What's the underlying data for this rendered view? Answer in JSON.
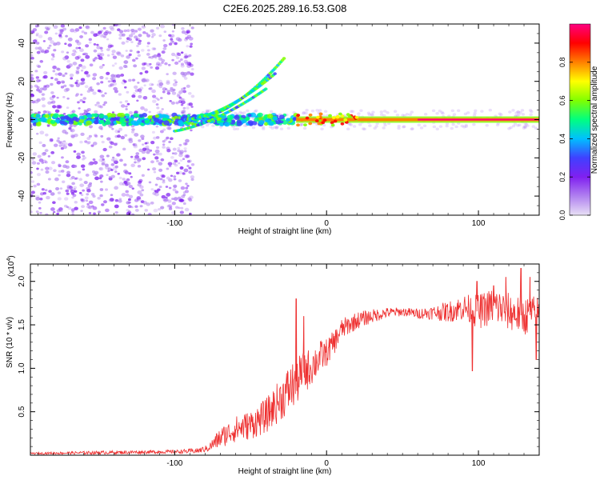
{
  "page_title": "C2E6.2025.289.16.53.G08",
  "chart_data": [
    {
      "type": "heatmap",
      "name": "spectrogram",
      "xlabel": "Height of straight line (km)",
      "ylabel": "Frequency (Hz)",
      "xlim": [
        -195,
        140
      ],
      "ylim": [
        -50,
        50
      ],
      "xticks": [
        -100,
        0,
        100
      ],
      "xtick_labels": [
        "-100",
        "0",
        "100"
      ],
      "yticks": [
        -40,
        -20,
        0,
        20,
        40
      ],
      "ytick_labels": [
        "-40",
        "-20",
        "0",
        "20",
        "40"
      ],
      "colorbar": {
        "label": "Normalized spectral amplitude",
        "range": [
          0,
          1
        ],
        "ticks": [
          0,
          0.2,
          0.4,
          0.6,
          0.8
        ],
        "tick_labels": [
          "0.0",
          "0.2",
          "0.4",
          "0.6",
          "0.8"
        ],
        "colors": [
          "#e8e0f5",
          "#b080f0",
          "#8020f0",
          "#4040ff",
          "#00c0ff",
          "#00ff80",
          "#80ff00",
          "#ffff00",
          "#ff8000",
          "#ff0000",
          "#ff0080"
        ]
      },
      "features": {
        "noise_region_x": [
          -195,
          -88
        ],
        "noise_frequency_spread": [
          -50,
          50
        ],
        "carrier_frequency": 0,
        "chirp_start_x": -88,
        "chirp_end_x": -28,
        "chirp_end_frequency": 32,
        "strong_carrier_x": [
          -20,
          140
        ]
      }
    },
    {
      "type": "line",
      "name": "snr",
      "color": "#ee3030",
      "xlabel": "Height of straight line (km)",
      "ylabel": "SNR (10 * v/v)",
      "y_multiplier": "(x10",
      "y_multiplier_exp": "4",
      "y_multiplier_close": ")",
      "xlim": [
        -195,
        140
      ],
      "ylim": [
        0,
        2.2
      ],
      "xticks": [
        -100,
        0,
        100
      ],
      "xtick_labels": [
        "-100",
        "0",
        "100"
      ],
      "yticks": [
        0.5,
        1.0,
        1.5,
        2.0
      ],
      "ytick_labels": [
        "0.5",
        "1.0",
        "1.5",
        "2.0"
      ],
      "x": [
        -195,
        -150,
        -100,
        -85,
        -78,
        -70,
        -60,
        -50,
        -40,
        -35,
        -30,
        -25,
        -20,
        -15,
        -10,
        -5,
        0,
        5,
        10,
        20,
        30,
        40,
        50,
        60,
        70,
        80,
        90,
        100,
        110,
        120,
        130,
        140
      ],
      "values": [
        0.02,
        0.03,
        0.04,
        0.05,
        0.08,
        0.2,
        0.3,
        0.35,
        0.45,
        0.55,
        0.65,
        0.75,
        0.85,
        0.95,
        1.02,
        1.12,
        1.18,
        1.3,
        1.45,
        1.55,
        1.6,
        1.64,
        1.65,
        1.63,
        1.64,
        1.65,
        1.7,
        1.65,
        1.72,
        1.65,
        1.6,
        1.63
      ],
      "noise_amplitude": [
        0.01,
        0.02,
        0.02,
        0.03,
        0.04,
        0.12,
        0.15,
        0.17,
        0.2,
        0.22,
        0.25,
        0.28,
        0.28,
        0.25,
        0.22,
        0.2,
        0.16,
        0.14,
        0.12,
        0.1,
        0.08,
        0.06,
        0.05,
        0.06,
        0.08,
        0.12,
        0.15,
        0.2,
        0.22,
        0.22,
        0.22,
        0.22
      ],
      "spikes": [
        {
          "x": -20,
          "y": 1.8
        },
        {
          "x": -15,
          "y": 1.6
        },
        {
          "x": 99,
          "y": 2.0
        },
        {
          "x": 110,
          "y": 1.95
        },
        {
          "x": 118,
          "y": 2.05
        },
        {
          "x": 128,
          "y": 2.15
        },
        {
          "x": 134,
          "y": 2.05
        },
        {
          "x": 96,
          "y": 0.97
        },
        {
          "x": 138,
          "y": 1.1
        }
      ]
    }
  ]
}
